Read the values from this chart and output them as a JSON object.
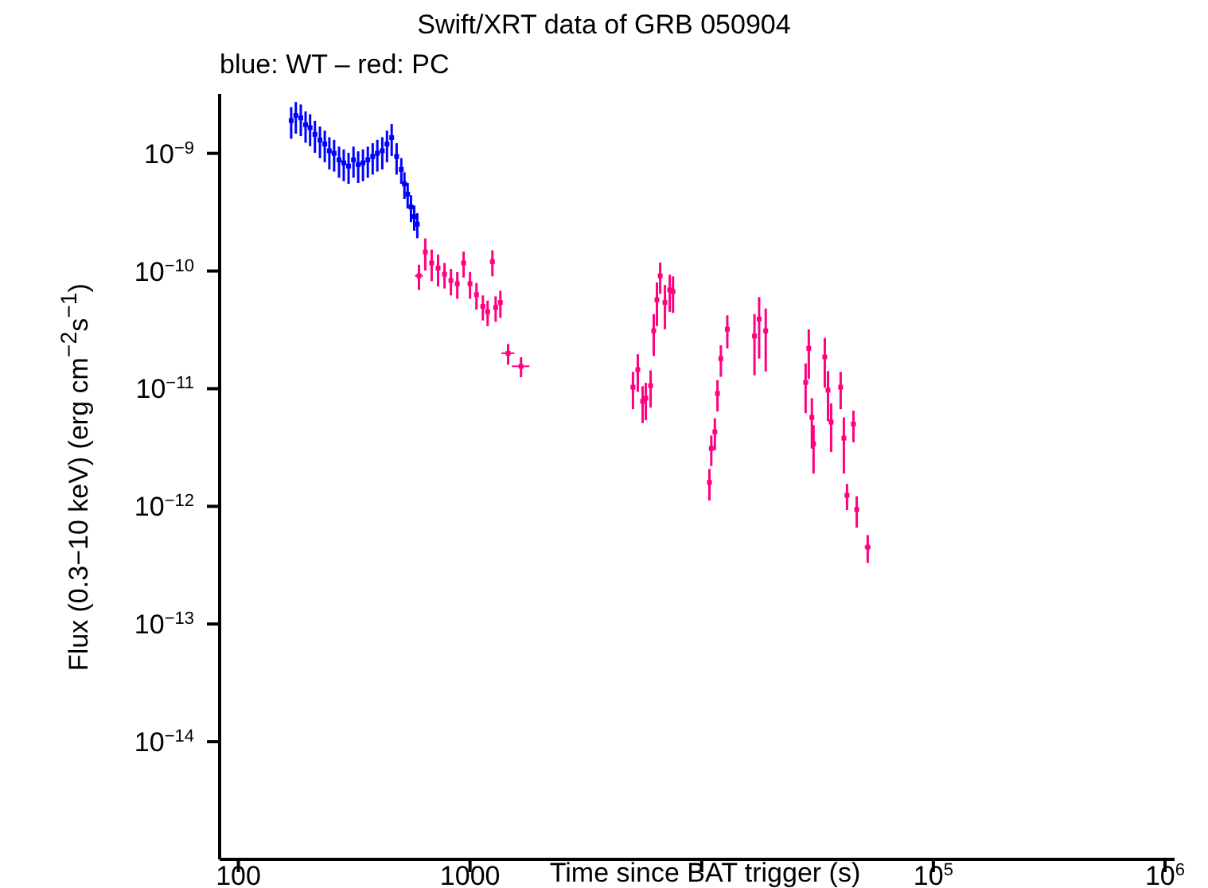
{
  "chart_data": {
    "type": "scatter",
    "title": "Swift/XRT data of GRB 050904",
    "subtitle": "blue: WT – red: PC",
    "xlabel": "Time since BAT trigger (s)",
    "ylabel": "Flux (0.3−10 keV) (erg cm$^{−2}$s$^{−1}$)",
    "log": "xy",
    "grid": false,
    "legend": false,
    "marker": "square",
    "xlim": [
      83,
      1100000
    ],
    "ylim": [
      1e-15,
      3.2e-09
    ],
    "xticks": [
      100,
      1000,
      {
        "value": 10000,
        "label": null
      },
      {
        "value": 100000,
        "label": "10$^{5}$"
      },
      {
        "value": 1000000,
        "label": "10$^{6}$"
      }
    ],
    "yticks": [
      {
        "value": 1e-14,
        "label": "10$^{−14}$"
      },
      {
        "value": 1e-13,
        "label": "10$^{−13}$"
      },
      {
        "value": 1e-12,
        "label": "10$^{−12}$"
      },
      {
        "value": 1e-11,
        "label": "10$^{−11}$"
      },
      {
        "value": 1e-10,
        "label": "10$^{−10}$"
      },
      {
        "value": 1e-09,
        "label": "10$^{−9}$"
      }
    ],
    "series": [
      {
        "color": "#0000ff",
        "x": [
          169,
          177,
          186,
          195,
          204,
          214,
          225,
          236,
          247,
          259,
          272,
          285,
          299,
          314,
          329,
          345,
          362,
          380,
          398,
          418,
          438,
          459,
          482,
          505,
          521,
          538,
          556,
          574,
          592
        ],
        "values": [
          1.9e-09,
          2.1e-09,
          2e-09,
          1.75e-09,
          1.65e-09,
          1.45e-09,
          1.3e-09,
          1.2e-09,
          1.05e-09,
          1e-09,
          8.8e-10,
          8.3e-10,
          7.8e-10,
          8.8e-10,
          8e-10,
          8.3e-10,
          8.8e-10,
          9.4e-10,
          1e-09,
          1.05e-09,
          1.2e-09,
          1.36e-09,
          9.4e-10,
          7.3e-10,
          5.5e-10,
          4.5e-10,
          3.5e-10,
          2.9e-10,
          2.5e-10
        ],
        "errors": [
          5.7e-10,
          6.3e-10,
          6e-10,
          5.2e-10,
          5e-10,
          4.4e-10,
          3.9e-10,
          3.6e-10,
          3.2e-10,
          3e-10,
          2.6e-10,
          2.5e-10,
          2.3e-10,
          2.6e-10,
          2.4e-10,
          2.5e-10,
          2.6e-10,
          2.8e-10,
          3e-10,
          3.2e-10,
          3.6e-10,
          4.1e-10,
          2.8e-10,
          1.8e-10,
          1.4e-10,
          1.1e-10,
          9e-11,
          7e-11,
          6e-11
        ]
      },
      {
        "color": "#ff0080",
        "x": [
          602,
          641,
          683,
          728,
          776,
          827,
          881,
          938,
          1000,
          1066,
          1136,
          1191,
          1249,
          1290,
          1352,
          1460,
          1660,
          5050,
          5300,
          5560,
          5740,
          6020,
          6210,
          6410,
          6620,
          6940,
          7280,
          7520,
          10800,
          11000,
          11400,
          11700,
          12100,
          12900,
          16900,
          17700,
          18900,
          28100,
          29000,
          29900,
          30400,
          34000,
          35100,
          36200,
          39800,
          41100,
          42400,
          45200,
          46700,
          52100
        ],
        "values": [
          9.1e-11,
          1.45e-10,
          1.17e-10,
          1.06e-10,
          9.4e-11,
          8.3e-11,
          7.8e-11,
          1.17e-10,
          7.8e-11,
          6.3e-11,
          5e-11,
          4.5e-11,
          1.2e-10,
          4.9e-11,
          5.4e-11,
          2e-11,
          1.55e-11,
          1.03e-11,
          1.45e-11,
          7.8e-12,
          8.3e-12,
          1.06e-11,
          3.1e-11,
          5.7e-11,
          9.1e-11,
          5.4e-11,
          6.9e-11,
          6.7e-11,
          1.6e-12,
          3.1e-12,
          4.3e-12,
          9.1e-12,
          1.8e-11,
          3.2e-11,
          2.8e-11,
          3.9e-11,
          3.1e-11,
          1.13e-11,
          2.2e-11,
          5.7e-12,
          3.4e-12,
          1.86e-11,
          9.7e-12,
          5.2e-12,
          1.03e-11,
          3.8e-12,
          1.24e-12,
          5e-12,
          9.4e-13,
          4.5e-13
        ],
        "errors": [
          2.2e-11,
          4.4e-11,
          3.5e-11,
          3.2e-11,
          2.3e-11,
          2.1e-11,
          2e-11,
          2.9e-11,
          2e-11,
          1.6e-11,
          1.2e-11,
          1.1e-11,
          3e-11,
          1.2e-11,
          1.4e-11,
          4e-12,
          3e-12,
          3.6e-12,
          5.1e-12,
          2.7e-12,
          2.9e-12,
          3.7e-12,
          1.2e-11,
          2.3e-11,
          2.7e-11,
          2.2e-11,
          2.4e-11,
          2.3e-11,
          4.8e-13,
          9e-13,
          1.3e-12,
          2.7e-12,
          5.4e-12,
          1e-11,
          1.5e-11,
          2.1e-11,
          1.7e-11,
          5.1e-12,
          9.9e-12,
          2.6e-12,
          1.5e-12,
          8.4e-12,
          4.4e-12,
          2.3e-12,
          3.6e-12,
          1.9e-12,
          3.1e-13,
          1.5e-12,
          2.8e-13,
          1.2e-13
        ],
        "xerrors": [
          24,
          null,
          null,
          null,
          null,
          null,
          null,
          null,
          null,
          null,
          null,
          null,
          null,
          null,
          null,
          93,
          145,
          null,
          null,
          null,
          null,
          null,
          null,
          null,
          null,
          null,
          null,
          null,
          null,
          null,
          null,
          null,
          null,
          null,
          null,
          null,
          null,
          null,
          null,
          null,
          null,
          null,
          null,
          null,
          null,
          null,
          null,
          null,
          null,
          1600
        ]
      }
    ]
  }
}
